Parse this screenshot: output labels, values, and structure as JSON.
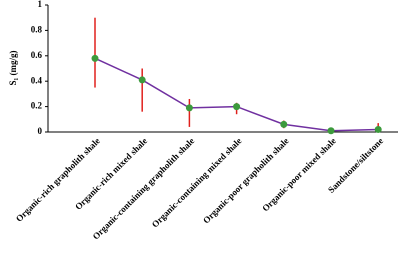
{
  "chart_data": {
    "type": "line",
    "y_label": "S₁ (mg/g)",
    "categories": [
      "Organic-rich grapholith shale",
      "Organic-rich mixed shale",
      "Organic-containing grapholith shale",
      "Organic-containing mixed shale",
      "Organic-poor grapholith shale",
      "Organic-poor mixed shale",
      "Sandstone/siltstone"
    ],
    "series": [
      {
        "color": "#7030a0",
        "marker_color": "#3c9a3c",
        "error_color": "#e0201c",
        "values": [
          0.58,
          0.41,
          0.19,
          0.2,
          0.06,
          0.01,
          0.02
        ],
        "errors_plus": [
          0.32,
          0.09,
          0.07,
          0.03,
          0.03,
          0.01,
          0.05
        ],
        "errors_minus": [
          0.23,
          0.25,
          0.15,
          0.06,
          0.03,
          0.01,
          0.02
        ]
      }
    ],
    "ylim": [
      0,
      1
    ],
    "yticks": [
      0,
      0.2,
      0.4,
      0.6,
      0.8,
      1
    ]
  }
}
